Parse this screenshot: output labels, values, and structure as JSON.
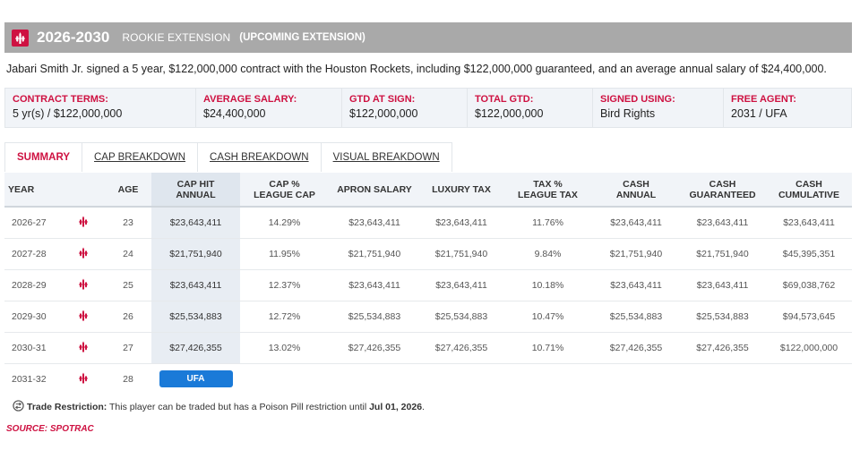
{
  "header": {
    "years": "2026-2030",
    "contract_type": "ROOKIE EXTENSION",
    "status": "(UPCOMING EXTENSION)"
  },
  "description": "Jabari Smith Jr. signed a 5 year, $122,000,000 contract with the Houston Rockets, including $122,000,000 guaranteed, and an average annual salary of $24,400,000.",
  "terms": [
    {
      "label": "CONTRACT TERMS:",
      "value": "5 yr(s) / $122,000,000"
    },
    {
      "label": "AVERAGE SALARY:",
      "value": "$24,400,000"
    },
    {
      "label": "GTD AT SIGN:",
      "value": "$122,000,000"
    },
    {
      "label": "TOTAL GTD:",
      "value": "$122,000,000"
    },
    {
      "label": "SIGNED USING:",
      "value": "Bird Rights"
    },
    {
      "label": "FREE AGENT:",
      "value": "2031 / UFA"
    }
  ],
  "tabs": [
    "SUMMARY",
    "CAP BREAKDOWN",
    "CASH BREAKDOWN",
    "VISUAL BREAKDOWN"
  ],
  "columns": {
    "year": "YEAR",
    "age": "AGE",
    "cap_hit": [
      "CAP HIT",
      "ANNUAL"
    ],
    "cap_pct": [
      "CAP %",
      "LEAGUE CAP"
    ],
    "apron": "APRON SALARY",
    "lux": "LUXURY TAX",
    "tax_pct": [
      "TAX %",
      "LEAGUE TAX"
    ],
    "cash_annual": [
      "CASH",
      "ANNUAL"
    ],
    "cash_gtd": [
      "CASH",
      "GUARANTEED"
    ],
    "cash_cum": [
      "CASH",
      "CUMULATIVE"
    ]
  },
  "rows": [
    {
      "year": "2026-27",
      "age": "23",
      "cap_hit": "$23,643,411",
      "cap_pct": "14.29%",
      "apron": "$23,643,411",
      "lux": "$23,643,411",
      "tax_pct": "11.76%",
      "cash_annual": "$23,643,411",
      "cash_gtd": "$23,643,411",
      "cash_cum": "$23,643,411"
    },
    {
      "year": "2027-28",
      "age": "24",
      "cap_hit": "$21,751,940",
      "cap_pct": "11.95%",
      "apron": "$21,751,940",
      "lux": "$21,751,940",
      "tax_pct": "9.84%",
      "cash_annual": "$21,751,940",
      "cash_gtd": "$21,751,940",
      "cash_cum": "$45,395,351"
    },
    {
      "year": "2028-29",
      "age": "25",
      "cap_hit": "$23,643,411",
      "cap_pct": "12.37%",
      "apron": "$23,643,411",
      "lux": "$23,643,411",
      "tax_pct": "10.18%",
      "cash_annual": "$23,643,411",
      "cash_gtd": "$23,643,411",
      "cash_cum": "$69,038,762"
    },
    {
      "year": "2029-30",
      "age": "26",
      "cap_hit": "$25,534,883",
      "cap_pct": "12.72%",
      "apron": "$25,534,883",
      "lux": "$25,534,883",
      "tax_pct": "10.47%",
      "cash_annual": "$25,534,883",
      "cash_gtd": "$25,534,883",
      "cash_cum": "$94,573,645"
    },
    {
      "year": "2030-31",
      "age": "27",
      "cap_hit": "$27,426,355",
      "cap_pct": "13.02%",
      "apron": "$27,426,355",
      "lux": "$27,426,355",
      "tax_pct": "10.71%",
      "cash_annual": "$27,426,355",
      "cash_gtd": "$27,426,355",
      "cash_cum": "$122,000,000"
    }
  ],
  "fa_row": {
    "year": "2031-32",
    "age": "28",
    "badge": "UFA"
  },
  "restriction": {
    "label": "Trade Restriction:",
    "text": " This player can be traded but has a Poison Pill restriction until ",
    "date": "Jul 01, 2026",
    "end": "."
  },
  "source": "SOURCE: SPOTRAC",
  "colors": {
    "accent": "#ce1141",
    "header_bg": "#a9a9a9",
    "badge": "#1a7ad8"
  }
}
